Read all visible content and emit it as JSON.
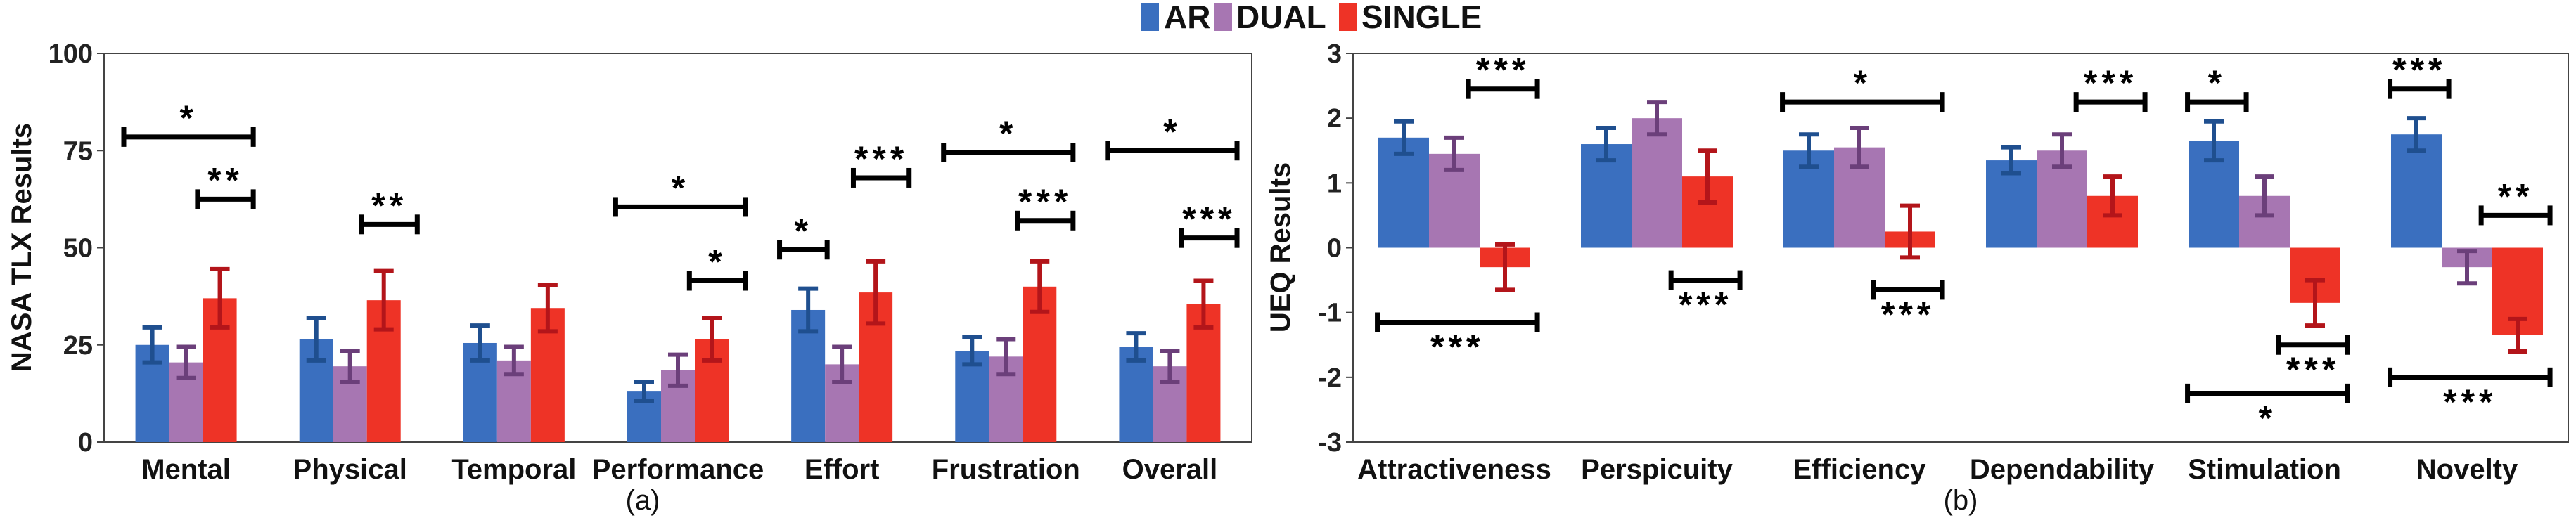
{
  "legend": {
    "items": [
      {
        "name": "AR",
        "color": "#3a6fbf"
      },
      {
        "name": "DUAL",
        "color": "#a776b2"
      },
      {
        "name": "SINGLE",
        "color": "#ee3326"
      }
    ]
  },
  "error_colors": {
    "AR": "#1f4f8f",
    "DUAL": "#6b3f7a",
    "SINGLE": "#b3151a"
  },
  "chart_data": [
    {
      "type": "bar",
      "caption": "(a)",
      "ylabel": "NASA TLX Results",
      "ylim": [
        0,
        100
      ],
      "yticks": [
        0,
        25,
        50,
        75,
        100
      ],
      "grid": false,
      "categories": [
        "Mental",
        "Physical",
        "Temporal",
        "Performance",
        "Effort",
        "Frustration",
        "Overall"
      ],
      "series": [
        {
          "name": "AR",
          "values": [
            25,
            26.5,
            25.5,
            13,
            34,
            23.5,
            24.5
          ],
          "errors": [
            4.5,
            5.5,
            4.5,
            2.5,
            5.5,
            3.5,
            3.5
          ]
        },
        {
          "name": "DUAL",
          "values": [
            20.5,
            19.5,
            21,
            18.5,
            20,
            22,
            19.5
          ],
          "errors": [
            4,
            4,
            3.5,
            4,
            4.5,
            4.5,
            4
          ]
        },
        {
          "name": "SINGLE",
          "values": [
            37,
            36.5,
            34.5,
            26.5,
            38.5,
            40,
            35.5
          ],
          "errors": [
            7.5,
            7.5,
            6,
            5.5,
            8,
            6.5,
            6
          ]
        }
      ],
      "annotations": [
        {
          "label": "*",
          "from": 0,
          "to": 1,
          "y": 78.5,
          "text_pos": "above"
        },
        {
          "label": "**",
          "from": 0.5,
          "to": 1,
          "y": 62.5,
          "text_pos": "above"
        },
        {
          "label": "**",
          "from": 1.5,
          "to": 2,
          "y": 56,
          "text_pos": "above"
        },
        {
          "label": "*",
          "from": 3,
          "to": 4,
          "y": 60.5,
          "text_pos": "above"
        },
        {
          "label": "*",
          "from": 3.5,
          "to": 4,
          "y": 41.5,
          "text_pos": "above"
        },
        {
          "label": "*",
          "from": 4,
          "to": 4.5,
          "y": 49.5,
          "text_pos": "above"
        },
        {
          "label": "***",
          "from": 4.5,
          "to": 5,
          "y": 68,
          "text_pos": "above"
        },
        {
          "label": "*",
          "from": 5,
          "to": 6,
          "y": 74.5,
          "text_pos": "above"
        },
        {
          "label": "***",
          "from": 5.5,
          "to": 6,
          "y": 57,
          "text_pos": "above"
        },
        {
          "label": "*",
          "from": 6,
          "to": 7,
          "y": 75,
          "text_pos": "above"
        },
        {
          "label": "***",
          "from": 6.5,
          "to": 7,
          "y": 52.5,
          "text_pos": "above"
        }
      ]
    },
    {
      "type": "bar",
      "caption": "(b)",
      "ylabel": "UEQ Results",
      "ylim": [
        -3,
        3
      ],
      "yticks": [
        -3,
        -2,
        -1,
        0,
        1,
        2,
        3
      ],
      "grid": false,
      "categories": [
        "Attractiveness",
        "Perspicuity",
        "Efficiency",
        "Dependability",
        "Stimulation",
        "Novelty"
      ],
      "series": [
        {
          "name": "AR",
          "values": [
            1.7,
            1.6,
            1.5,
            1.35,
            1.65,
            1.75
          ],
          "errors": [
            0.25,
            0.25,
            0.25,
            0.2,
            0.3,
            0.25
          ]
        },
        {
          "name": "DUAL",
          "values": [
            1.45,
            2.0,
            1.55,
            1.5,
            0.8,
            -0.3
          ],
          "errors": [
            0.25,
            0.25,
            0.3,
            0.25,
            0.3,
            0.25
          ]
        },
        {
          "name": "SINGLE",
          "values": [
            -0.3,
            1.1,
            0.25,
            0.8,
            -0.85,
            -1.35
          ],
          "errors": [
            0.35,
            0.4,
            0.4,
            0.3,
            0.35,
            0.25
          ]
        }
      ],
      "annotations": [
        {
          "label": "***",
          "from": 0.5,
          "to": 1,
          "y": 2.45,
          "text_pos": "above"
        },
        {
          "label": "***",
          "from": 0,
          "to": 1,
          "y": -1.15,
          "text_pos": "below"
        },
        {
          "label": "***",
          "from": 1.5,
          "to": 2,
          "y": -0.5,
          "text_pos": "below"
        },
        {
          "label": "*",
          "from": 2,
          "to": 3,
          "y": 2.25,
          "text_pos": "above"
        },
        {
          "label": "***",
          "from": 2.5,
          "to": 3,
          "y": -0.65,
          "text_pos": "below"
        },
        {
          "label": "***",
          "from": 3.5,
          "to": 4,
          "y": 2.25,
          "text_pos": "above"
        },
        {
          "label": "*",
          "from": 4,
          "to": 4.5,
          "y": 2.25,
          "text_pos": "above"
        },
        {
          "label": "***",
          "from": 4.5,
          "to": 5,
          "y": -1.5,
          "text_pos": "below"
        },
        {
          "label": "*",
          "from": 4,
          "to": 5,
          "y": -2.25,
          "text_pos": "below"
        },
        {
          "label": "***",
          "from": 5,
          "to": 5.5,
          "y": 2.45,
          "text_pos": "above"
        },
        {
          "label": "**",
          "from": 5.5,
          "to": 6,
          "y": 0.5,
          "text_pos": "above"
        },
        {
          "label": "***",
          "from": 5,
          "to": 6,
          "y": -2.0,
          "text_pos": "below"
        }
      ]
    }
  ]
}
